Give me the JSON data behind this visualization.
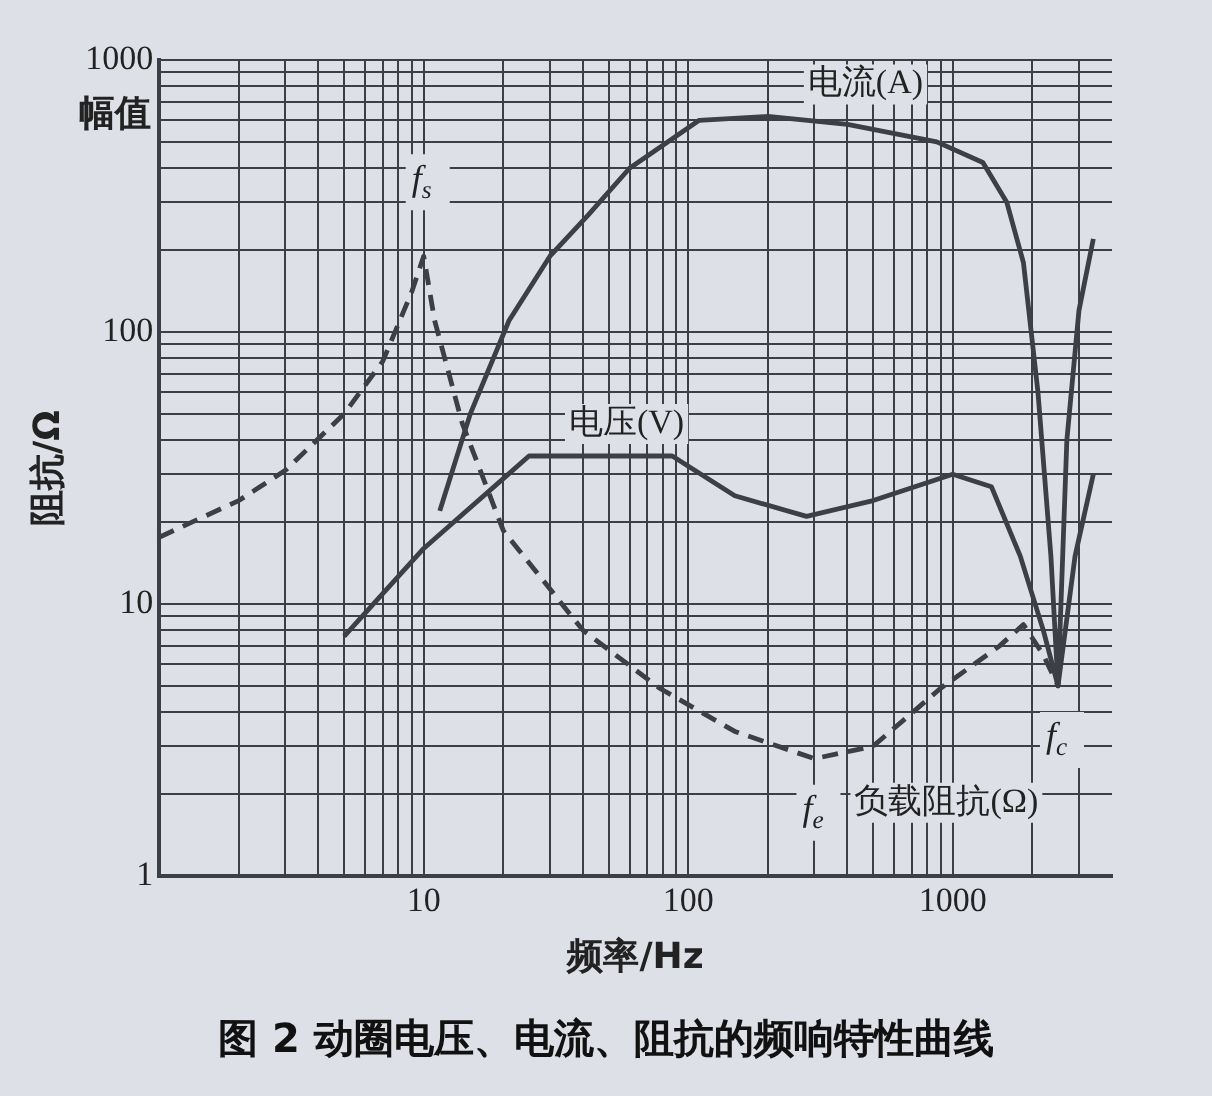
{
  "chart_data": {
    "type": "line",
    "title": "图 2 动圈电压、电流、阻抗的频响特性曲线",
    "xlabel": "频率/Hz",
    "ylabel": "阻抗/Ω",
    "log": "xy",
    "grid": true,
    "legend": false,
    "marker": "none",
    "xlim": [
      1,
      4000
    ],
    "ylim": [
      1,
      1000
    ],
    "xticks": [
      {
        "value": 2,
        "label": null
      },
      {
        "value": 3,
        "label": null
      },
      {
        "value": 4,
        "label": null
      },
      {
        "value": 5,
        "label": null
      },
      {
        "value": 6,
        "label": null
      },
      {
        "value": 7,
        "label": null
      },
      {
        "value": 8,
        "label": null
      },
      {
        "value": 9,
        "label": null
      },
      10,
      {
        "value": 20,
        "label": null
      },
      {
        "value": 30,
        "label": null
      },
      {
        "value": 40,
        "label": null
      },
      {
        "value": 50,
        "label": null
      },
      {
        "value": 60,
        "label": null
      },
      {
        "value": 70,
        "label": null
      },
      {
        "value": 80,
        "label": null
      },
      {
        "value": 90,
        "label": null
      },
      100,
      {
        "value": 200,
        "label": null
      },
      {
        "value": 300,
        "label": null
      },
      {
        "value": 400,
        "label": null
      },
      {
        "value": 500,
        "label": null
      },
      {
        "value": 600,
        "label": null
      },
      {
        "value": 700,
        "label": null
      },
      {
        "value": 800,
        "label": null
      },
      {
        "value": 900,
        "label": null
      },
      1000,
      {
        "value": 2000,
        "label": null
      },
      {
        "value": 3000,
        "label": null
      }
    ],
    "yticks": [
      1,
      {
        "value": 2,
        "label": null
      },
      {
        "value": 3,
        "label": null
      },
      {
        "value": 4,
        "label": null
      },
      {
        "value": 5,
        "label": null
      },
      {
        "value": 6,
        "label": null
      },
      {
        "value": 7,
        "label": null
      },
      {
        "value": 8,
        "label": null
      },
      {
        "value": 9,
        "label": null
      },
      10,
      {
        "value": 20,
        "label": null
      },
      {
        "value": 30,
        "label": null
      },
      {
        "value": 40,
        "label": null
      },
      {
        "value": 50,
        "label": null
      },
      {
        "value": 60,
        "label": null
      },
      {
        "value": 70,
        "label": null
      },
      {
        "value": 80,
        "label": null
      },
      {
        "value": 90,
        "label": null
      },
      100,
      {
        "value": 200,
        "label": null
      },
      {
        "value": 300,
        "label": null
      },
      {
        "value": 400,
        "label": null
      },
      {
        "value": 500,
        "label": null
      },
      {
        "value": 600,
        "label": null
      },
      {
        "value": 700,
        "label": null
      },
      {
        "value": 800,
        "label": null
      },
      {
        "value": 900,
        "label": null
      },
      1000
    ],
    "series": [
      {
        "name": "电流(A)",
        "color": "#3c3f47",
        "line_style": "solid",
        "x": [
          11.5,
          15,
          21,
          30,
          42,
          60,
          110,
          200,
          400,
          870,
          1300,
          1600,
          1850,
          2100,
          2350,
          2500,
          2700,
          3000,
          3400
        ],
        "values": [
          22,
          50,
          110,
          190,
          270,
          400,
          600,
          620,
          580,
          500,
          420,
          300,
          180,
          60,
          15,
          5,
          40,
          120,
          220
        ]
      },
      {
        "name": "电压(V)",
        "color": "#3c3f47",
        "line_style": "solid",
        "x": [
          5,
          10,
          25,
          87,
          150,
          280,
          500,
          1000,
          1400,
          1800,
          2200,
          2500,
          2900,
          3400
        ],
        "values": [
          7.6,
          16,
          35,
          35,
          25,
          21,
          24,
          30,
          27,
          15,
          8,
          5,
          15,
          30
        ]
      },
      {
        "name": "负载阻抗(Ω)",
        "color": "#3c3f47",
        "line_style": "dashed",
        "x": [
          1,
          2,
          3,
          5,
          7,
          9,
          10,
          11,
          14,
          20,
          40,
          78,
          150,
          300,
          500,
          900,
          1500,
          1850,
          2200,
          2500
        ],
        "values": [
          17.6,
          24,
          31,
          50,
          78,
          140,
          190,
          110,
          46,
          18.6,
          8,
          4.9,
          3.4,
          2.7,
          3,
          4.9,
          7,
          8.4,
          6.5,
          5
        ]
      }
    ],
    "annotations": [
      "幅值",
      {
        "text": "f$_{s}$",
        "x": 10,
        "y": 190
      },
      {
        "text": "f$_{e}$",
        "x": 300,
        "y": 2.7
      },
      {
        "text": "f$_{c}$",
        "x": 2500,
        "y": 5
      }
    ]
  }
}
